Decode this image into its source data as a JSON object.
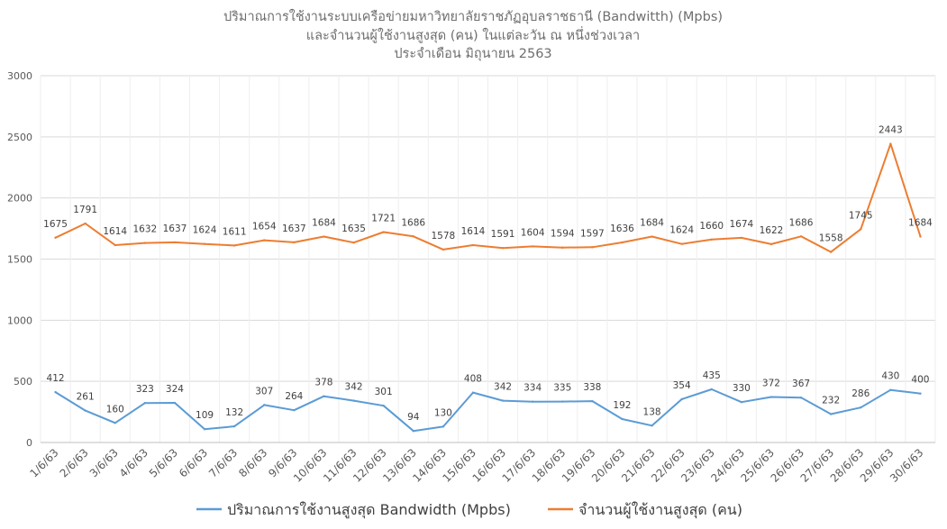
{
  "chart_data": {
    "type": "line",
    "title_lines": [
      "ปริมาณการใช้งานระบบเครือข่ายมหาวิทยาลัยราชภัฏอุบลราชธานี (Bandwitth) (Mpbs)",
      "และจำนวนผู้ใช้งานสูงสุด (คน) ในแต่ละวัน ณ หนึ่งช่วงเวลา",
      "ประจำเดือน มิถุนายน 2563"
    ],
    "categories": [
      "1/6/63",
      "2/6/63",
      "3/6/63",
      "4/6/63",
      "5/6/63",
      "6/6/63",
      "7/6/63",
      "8/6/63",
      "9/6/63",
      "10/6/63",
      "11/6/63",
      "12/6/63",
      "13/6/63",
      "14/6/63",
      "15/6/63",
      "16/6/63",
      "17/6/63",
      "18/6/63",
      "19/6/63",
      "20/6/63",
      "21/6/63",
      "22/6/63",
      "23/6/63",
      "24/6/63",
      "25/6/63",
      "26/6/63",
      "27/6/63",
      "28/6/63",
      "29/6/63",
      "30/6/63"
    ],
    "series": [
      {
        "name": "ปริมาณการใช้งานสูงสุด Bandwidth (Mpbs)",
        "color": "#5b9bd5",
        "values": [
          412,
          261,
          160,
          323,
          324,
          109,
          132,
          307,
          264,
          378,
          342,
          301,
          94,
          130,
          408,
          342,
          334,
          335,
          338,
          192,
          138,
          354,
          435,
          330,
          372,
          367,
          232,
          286,
          430,
          400
        ]
      },
      {
        "name": "จำนวนผู้ใช้งานสูงสุด (คน)",
        "color": "#ed7d31",
        "values": [
          1675,
          1791,
          1614,
          1632,
          1637,
          1624,
          1611,
          1654,
          1637,
          1684,
          1635,
          1721,
          1686,
          1578,
          1614,
          1591,
          1604,
          1594,
          1597,
          1636,
          1684,
          1624,
          1660,
          1674,
          1622,
          1686,
          1558,
          1745,
          2443,
          1684
        ]
      }
    ],
    "ylim": [
      0,
      3000
    ],
    "yticks": [
      0,
      500,
      1000,
      1500,
      2000,
      2500,
      3000
    ],
    "grid": true,
    "legend_position": "bottom"
  }
}
